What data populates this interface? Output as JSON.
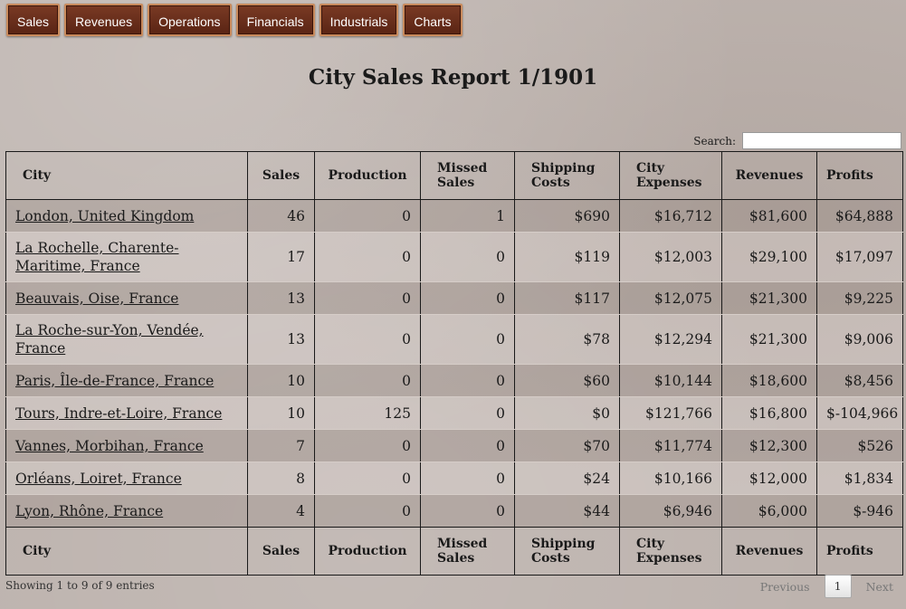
{
  "nav": {
    "items": [
      "Sales",
      "Revenues",
      "Operations",
      "Financials",
      "Industrials",
      "Charts"
    ]
  },
  "page": {
    "title": "City Sales Report 1/1901"
  },
  "search": {
    "label": "Search:",
    "value": ""
  },
  "table": {
    "columns": [
      "City",
      "Sales",
      "Production",
      "Missed Sales",
      "Shipping Costs",
      "City Expenses",
      "Revenues",
      "Profits"
    ],
    "rows": [
      {
        "city": "London, United Kingdom",
        "sales": "46",
        "production": "0",
        "missed": "1",
        "shipping": "$690",
        "expenses": "$16,712",
        "revenues": "$81,600",
        "profits": "$64,888"
      },
      {
        "city": "La Rochelle, Charente-Maritime, France",
        "sales": "17",
        "production": "0",
        "missed": "0",
        "shipping": "$119",
        "expenses": "$12,003",
        "revenues": "$29,100",
        "profits": "$17,097"
      },
      {
        "city": "Beauvais, Oise, France",
        "sales": "13",
        "production": "0",
        "missed": "0",
        "shipping": "$117",
        "expenses": "$12,075",
        "revenues": "$21,300",
        "profits": "$9,225"
      },
      {
        "city": "La Roche-sur-Yon, Vendée, France",
        "sales": "13",
        "production": "0",
        "missed": "0",
        "shipping": "$78",
        "expenses": "$12,294",
        "revenues": "$21,300",
        "profits": "$9,006"
      },
      {
        "city": "Paris, Île-de-France, France",
        "sales": "10",
        "production": "0",
        "missed": "0",
        "shipping": "$60",
        "expenses": "$10,144",
        "revenues": "$18,600",
        "profits": "$8,456"
      },
      {
        "city": "Tours, Indre-et-Loire, France",
        "sales": "10",
        "production": "125",
        "missed": "0",
        "shipping": "$0",
        "expenses": "$121,766",
        "revenues": "$16,800",
        "profits": "$-104,966"
      },
      {
        "city": "Vannes, Morbihan, France",
        "sales": "7",
        "production": "0",
        "missed": "0",
        "shipping": "$70",
        "expenses": "$11,774",
        "revenues": "$12,300",
        "profits": "$526"
      },
      {
        "city": "Orléans, Loiret, France",
        "sales": "8",
        "production": "0",
        "missed": "0",
        "shipping": "$24",
        "expenses": "$10,166",
        "revenues": "$12,000",
        "profits": "$1,834"
      },
      {
        "city": "Lyon, Rhône, France",
        "sales": "4",
        "production": "0",
        "missed": "0",
        "shipping": "$44",
        "expenses": "$6,946",
        "revenues": "$6,000",
        "profits": "$-946"
      }
    ]
  },
  "footer": {
    "info": "Showing 1 to 9 of 9 entries",
    "previous": "Previous",
    "page": "1",
    "next": "Next"
  }
}
